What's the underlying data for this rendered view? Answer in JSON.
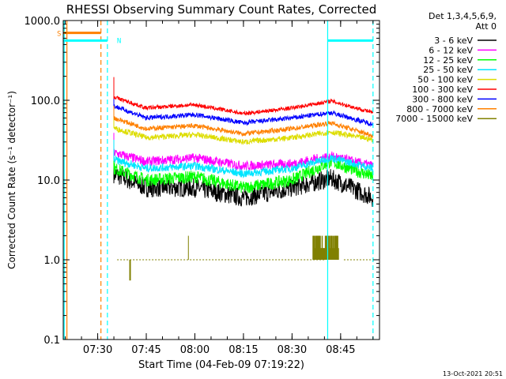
{
  "chart_data": {
    "type": "line",
    "title": "RHESSI Observing Summary Count Rates, Corrected",
    "xlabel": "Start Time (04-Feb-09 07:19:22)",
    "ylabel": "Corrected Count Rate (s⁻¹ detector⁻¹)",
    "yscale": "log",
    "ylim": [
      0.1,
      1000
    ],
    "xlim": [
      "07:19:22",
      "08:57:00"
    ],
    "xticks": [
      "07:30",
      "07:45",
      "08:00",
      "08:15",
      "08:30",
      "08:45"
    ],
    "yticks": [
      "0.1",
      "1.0",
      "10.0",
      "100.0",
      "1000.0"
    ],
    "legend_header": [
      "Det 1,3,4,5,6,9,",
      "Att 0"
    ],
    "series": [
      {
        "name": "3 - 6 keV",
        "color": "#000000",
        "x": [
          "07:35",
          "07:45",
          "08:00",
          "08:15",
          "08:30",
          "08:42",
          "08:55"
        ],
        "y": [
          12,
          8,
          8,
          6,
          8,
          10.5,
          6
        ]
      },
      {
        "name": "6 - 12 keV",
        "color": "#ff00ff",
        "x": [
          "07:35",
          "07:45",
          "08:00",
          "08:15",
          "08:30",
          "08:42",
          "08:55"
        ],
        "y": [
          22,
          17,
          19,
          15,
          16,
          20,
          15
        ]
      },
      {
        "name": "12 - 25 keV",
        "color": "#00ff00",
        "x": [
          "07:35",
          "07:45",
          "08:00",
          "08:15",
          "08:30",
          "08:42",
          "08:55"
        ],
        "y": [
          14,
          10,
          11,
          8,
          10,
          17,
          11
        ]
      },
      {
        "name": "25 - 50 keV",
        "color": "#00e5ff",
        "x": [
          "07:35",
          "07:45",
          "08:00",
          "08:15",
          "08:30",
          "08:42",
          "08:55"
        ],
        "y": [
          18,
          14,
          15,
          12,
          14,
          19,
          14
        ]
      },
      {
        "name": "50 - 100 keV",
        "color": "#dddd00",
        "x": [
          "07:35",
          "07:45",
          "08:00",
          "08:15",
          "08:30",
          "08:42",
          "08:55"
        ],
        "y": [
          45,
          34,
          37,
          30,
          34,
          40,
          32
        ]
      },
      {
        "name": "100 - 300 keV",
        "color": "#ff0000",
        "x": [
          "07:35",
          "07:45",
          "08:00",
          "08:15",
          "08:30",
          "08:42",
          "08:55"
        ],
        "y": [
          110,
          80,
          88,
          68,
          80,
          98,
          70
        ]
      },
      {
        "name": "300 - 800 keV",
        "color": "#0000ff",
        "x": [
          "07:35",
          "07:45",
          "08:00",
          "08:15",
          "08:30",
          "08:42",
          "08:55"
        ],
        "y": [
          85,
          60,
          66,
          52,
          60,
          70,
          50
        ]
      },
      {
        "name": "800 - 7000 keV",
        "color": "#ff8000",
        "x": [
          "07:35",
          "07:45",
          "08:00",
          "08:15",
          "08:30",
          "08:42",
          "08:55"
        ],
        "y": [
          60,
          44,
          48,
          38,
          44,
          52,
          36
        ]
      },
      {
        "name": "7000 - 15000 keV",
        "color": "#808000",
        "x": [
          "07:36",
          "07:46",
          "08:00",
          "08:15",
          "08:30",
          "08:42",
          "08:55"
        ],
        "y": [
          1.0,
          1.0,
          1.0,
          1.0,
          1.0,
          1.0,
          1.0
        ]
      }
    ],
    "flags": {
      "S": {
        "label": "S",
        "color": "#ff8000",
        "start": "07:19:22",
        "end": "07:31:00",
        "y": 700
      },
      "N": {
        "label": "N",
        "color": "#00ffff",
        "start": "07:19:22",
        "end": "07:33:00",
        "y": 560
      },
      "N2": {
        "label": "",
        "color": "#00ffff",
        "start": "08:41:00",
        "end": "08:55:00",
        "y": 560
      }
    },
    "vlines": [
      {
        "time": "07:19:40",
        "color": "#00ffff",
        "style": "solid"
      },
      {
        "time": "07:20:30",
        "color": "#ff8000",
        "style": "solid"
      },
      {
        "time": "07:31:00",
        "color": "#ff8000",
        "style": "dashed"
      },
      {
        "time": "07:33:00",
        "color": "#00ffff",
        "style": "dashed"
      },
      {
        "time": "08:41:00",
        "color": "#00ffff",
        "style": "solid"
      },
      {
        "time": "08:55:00",
        "color": "#00ffff",
        "style": "dashed"
      }
    ]
  },
  "footer_date": "13-Oct-2021 20:51"
}
